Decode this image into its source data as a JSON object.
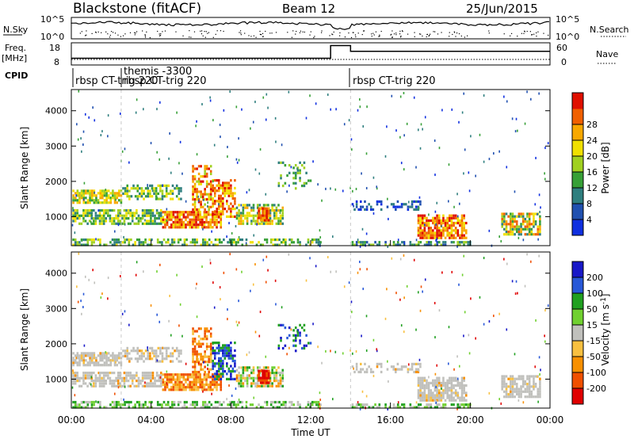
{
  "header": {
    "station": "Blackstone (fitACF)",
    "beam": "Beam 12",
    "date": "25/Jun/2015"
  },
  "colors": {
    "power": [
      "#1030e0",
      "#2050b0",
      "#2f7f7f",
      "#37a037",
      "#a0d020",
      "#f0e000",
      "#f8a800",
      "#f06000",
      "#e01000"
    ],
    "velocity": [
      "#1818c8",
      "#2858d8",
      "#20a020",
      "#70d030",
      "#c0c0bc",
      "#f8c040",
      "#f89000",
      "#f05000",
      "#e00000"
    ],
    "ground": "#c0c0bc"
  },
  "chart_data": [
    {
      "type": "line",
      "name": "noise-panel",
      "left_axis_label": "N.Sky",
      "right_axis_label": "N.Search",
      "left_ticks": [
        "10^5",
        "10^0"
      ],
      "right_ticks": [
        "10^5",
        "10^0"
      ]
    },
    {
      "type": "line",
      "name": "frequency-panel",
      "left_axis_label": "Freq.",
      "left_axis_unit": "[MHz]",
      "right_axis_label": "Nave",
      "left_ticks": [
        18,
        8
      ],
      "right_ticks": [
        60,
        0
      ],
      "frequency_steps": [
        {
          "x": 0,
          "y": 10.5
        },
        {
          "x": 13.0,
          "y": 17.8
        },
        {
          "x": 14.0,
          "y": 14.5
        }
      ],
      "nave_level": 2
    },
    {
      "type": "table",
      "name": "cpid-panel",
      "label": "CPID",
      "segments": [
        {
          "start": 0,
          "text": "rbsp CT-trig 220",
          "row": "lower"
        },
        {
          "start": 2.5,
          "text": "themis -3300",
          "row": "upper"
        },
        {
          "start": 2.5,
          "text": "rbsp CT-trig 220",
          "row": "lower-continuation"
        },
        {
          "start": 14.0,
          "text": "rbsp CT-trig 220",
          "row": "lower"
        }
      ]
    },
    {
      "type": "heatmap",
      "name": "power-panel",
      "ylabel": "Slant Range [km]",
      "ylim": [
        180,
        4600
      ],
      "xlim": [
        0,
        24
      ],
      "yticks": [
        1000,
        2000,
        3000,
        4000
      ],
      "colorbar_label": "Power [dB]",
      "colorbar_ticks": [
        4,
        8,
        12,
        16,
        20,
        24,
        28
      ],
      "colorbar_range": [
        0,
        32
      ]
    },
    {
      "type": "heatmap",
      "name": "velocity-panel",
      "ylabel": "Slant Range [km]",
      "ylim": [
        180,
        4600
      ],
      "xlim": [
        0,
        24
      ],
      "yticks": [
        1000,
        2000,
        3000,
        4000
      ],
      "xlabel": "Time UT",
      "xticks": [
        "00:00",
        "04:00",
        "08:00",
        "12:00",
        "16:00",
        "20:00",
        "00:00"
      ],
      "colorbar_label": "Velocity [m s",
      "colorbar_label_superscript": "-1",
      "colorbar_label_suffix": "]",
      "colorbar_ticks": [
        200,
        100,
        50,
        15,
        -15,
        -50,
        -100,
        -200
      ]
    }
  ]
}
